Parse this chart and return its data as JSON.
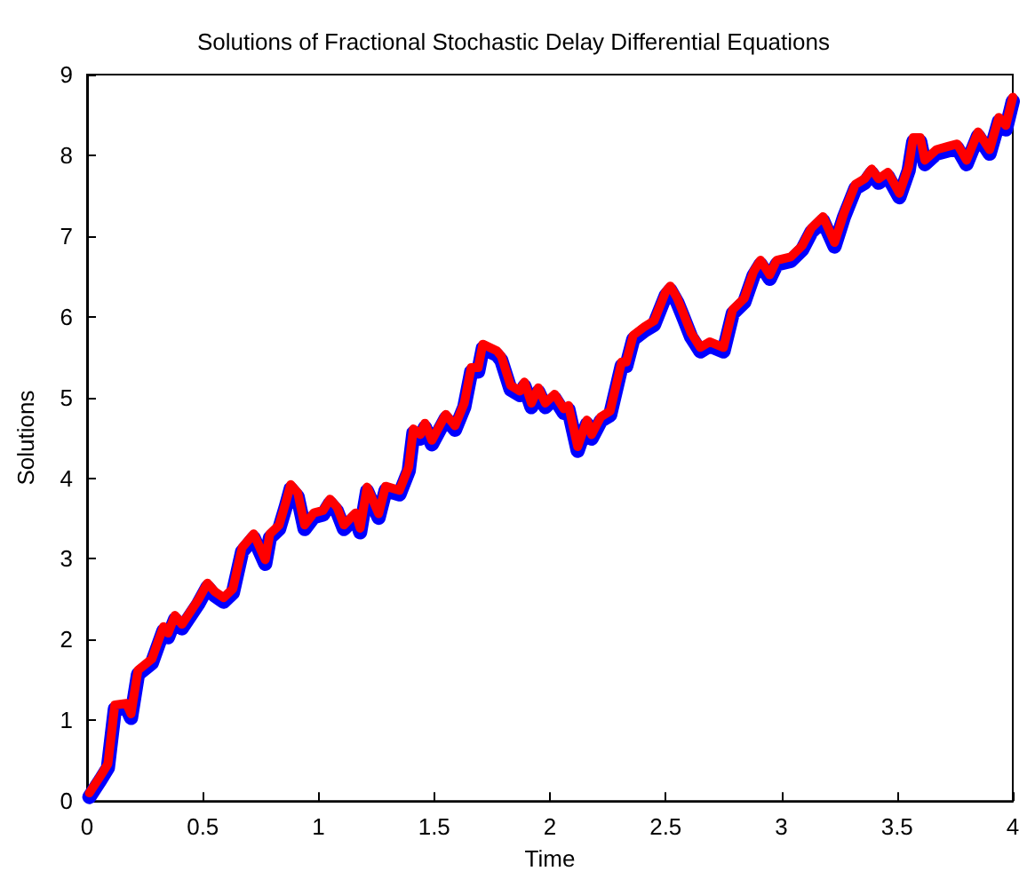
{
  "chart_data": {
    "type": "line",
    "title": "Solutions of Fractional Stochastic Delay Differential Equations",
    "xlabel": "Time",
    "ylabel": "Solutions",
    "x": [
      0.01,
      0.06,
      0.09,
      0.12,
      0.17,
      0.19,
      0.22,
      0.28,
      0.33,
      0.35,
      0.38,
      0.41,
      0.48,
      0.52,
      0.55,
      0.59,
      0.63,
      0.67,
      0.72,
      0.77,
      0.79,
      0.83,
      0.86,
      0.88,
      0.91,
      0.94,
      0.98,
      1.02,
      1.05,
      1.08,
      1.11,
      1.16,
      1.18,
      1.21,
      1.26,
      1.29,
      1.35,
      1.39,
      1.41,
      1.44,
      1.46,
      1.49,
      1.55,
      1.59,
      1.63,
      1.66,
      1.69,
      1.71,
      1.77,
      1.79,
      1.83,
      1.87,
      1.89,
      1.92,
      1.95,
      1.98,
      2.02,
      2.06,
      2.08,
      2.12,
      2.16,
      2.18,
      2.22,
      2.26,
      2.31,
      2.33,
      2.36,
      2.41,
      2.45,
      2.5,
      2.52,
      2.55,
      2.57,
      2.61,
      2.65,
      2.69,
      2.75,
      2.79,
      2.84,
      2.88,
      2.91,
      2.95,
      2.98,
      3.04,
      3.09,
      3.13,
      3.18,
      3.23,
      3.27,
      3.32,
      3.36,
      3.39,
      3.42,
      3.46,
      3.51,
      3.55,
      3.57,
      3.6,
      3.62,
      3.67,
      3.72,
      3.76,
      3.8,
      3.85,
      3.9,
      3.94,
      3.97,
      4.0
    ],
    "series": [
      {
        "color": "#0000ff",
        "values": [
          0.05,
          0.27,
          0.41,
          1.14,
          1.16,
          1.03,
          1.57,
          1.71,
          2.11,
          2.03,
          2.25,
          2.14,
          2.44,
          2.65,
          2.55,
          2.47,
          2.58,
          3.09,
          3.26,
          2.94,
          3.26,
          3.37,
          3.66,
          3.87,
          3.77,
          3.37,
          3.52,
          3.55,
          3.69,
          3.59,
          3.37,
          3.52,
          3.33,
          3.84,
          3.51,
          3.85,
          3.8,
          4.09,
          4.56,
          4.49,
          4.63,
          4.42,
          4.74,
          4.6,
          4.88,
          5.32,
          5.32,
          5.61,
          5.53,
          5.46,
          5.1,
          5.03,
          5.14,
          4.88,
          5.07,
          4.88,
          4.99,
          4.81,
          4.85,
          4.34,
          4.67,
          4.49,
          4.71,
          4.78,
          5.39,
          5.39,
          5.72,
          5.83,
          5.9,
          6.26,
          6.33,
          6.18,
          6.04,
          5.75,
          5.57,
          5.64,
          5.57,
          6.04,
          6.18,
          6.51,
          6.65,
          6.47,
          6.65,
          6.69,
          6.83,
          7.05,
          7.19,
          6.87,
          7.23,
          7.59,
          7.66,
          7.78,
          7.66,
          7.74,
          7.48,
          7.81,
          8.17,
          8.17,
          7.89,
          8.02,
          8.06,
          8.09,
          7.89,
          8.24,
          8.02,
          8.42,
          8.32,
          8.67
        ]
      },
      {
        "color": "#ff0000",
        "values": [
          0.1,
          0.32,
          0.46,
          1.19,
          1.21,
          1.08,
          1.62,
          1.76,
          2.16,
          2.08,
          2.3,
          2.19,
          2.49,
          2.7,
          2.6,
          2.52,
          2.63,
          3.14,
          3.31,
          2.99,
          3.31,
          3.42,
          3.71,
          3.92,
          3.82,
          3.42,
          3.57,
          3.6,
          3.74,
          3.64,
          3.42,
          3.57,
          3.38,
          3.89,
          3.56,
          3.9,
          3.85,
          4.14,
          4.61,
          4.54,
          4.68,
          4.47,
          4.79,
          4.65,
          4.93,
          5.37,
          5.37,
          5.66,
          5.58,
          5.51,
          5.15,
          5.08,
          5.19,
          4.93,
          5.12,
          4.93,
          5.04,
          4.86,
          4.9,
          4.39,
          4.72,
          4.54,
          4.76,
          4.83,
          5.44,
          5.44,
          5.77,
          5.88,
          5.95,
          6.31,
          6.38,
          6.23,
          6.09,
          5.8,
          5.62,
          5.69,
          5.62,
          6.09,
          6.23,
          6.56,
          6.7,
          6.52,
          6.7,
          6.74,
          6.88,
          7.1,
          7.24,
          6.92,
          7.28,
          7.64,
          7.71,
          7.83,
          7.71,
          7.79,
          7.53,
          7.86,
          8.22,
          8.22,
          7.94,
          8.07,
          8.11,
          8.14,
          7.94,
          8.29,
          8.07,
          8.47,
          8.37,
          8.72
        ]
      }
    ],
    "xlim": [
      0,
      4
    ],
    "xticks": [
      0,
      0.5,
      1,
      1.5,
      2,
      2.5,
      3,
      3.5,
      4
    ],
    "ylim": [
      0,
      9
    ],
    "yticks": [
      0,
      1,
      2,
      3,
      4,
      5,
      6,
      7,
      8,
      9
    ],
    "line_style": "solid"
  }
}
